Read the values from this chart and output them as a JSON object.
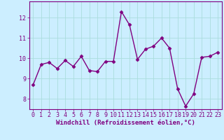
{
  "x": [
    0,
    1,
    2,
    3,
    4,
    5,
    6,
    7,
    8,
    9,
    10,
    11,
    12,
    13,
    14,
    15,
    16,
    17,
    18,
    19,
    20,
    21,
    22,
    23
  ],
  "y": [
    8.7,
    9.7,
    9.8,
    9.5,
    9.9,
    9.6,
    10.1,
    9.4,
    9.35,
    9.85,
    9.85,
    12.3,
    11.65,
    9.95,
    10.45,
    10.6,
    11.0,
    10.5,
    8.5,
    7.65,
    8.25,
    10.05,
    10.1,
    10.3
  ],
  "line_color": "#800080",
  "marker": "D",
  "markersize": 2.5,
  "linewidth": 1.0,
  "background_color": "#cceeff",
  "grid_color": "#aadddd",
  "xlabel": "Windchill (Refroidissement éolien,°C)",
  "xlabel_color": "#800080",
  "tick_color": "#800080",
  "spine_color": "#800080",
  "ylim": [
    7.5,
    12.8
  ],
  "yticks": [
    8,
    9,
    10,
    11,
    12
  ],
  "xticks": [
    0,
    1,
    2,
    3,
    4,
    5,
    6,
    7,
    8,
    9,
    10,
    11,
    12,
    13,
    14,
    15,
    16,
    17,
    18,
    19,
    20,
    21,
    22,
    23
  ],
  "xlabel_fontsize": 6.5,
  "tick_fontsize": 6,
  "figsize": [
    3.2,
    2.0
  ],
  "dpi": 100
}
